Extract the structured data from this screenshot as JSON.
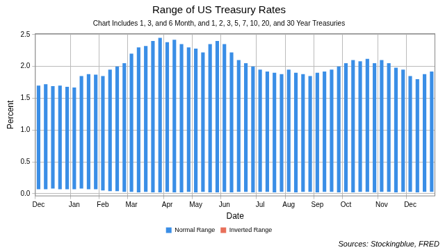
{
  "chart_data": {
    "type": "bar",
    "title": "Range of US Treasury Rates",
    "subtitle": "Chart Includes 1, 3, and 6 Month, and 1, 2, 3, 5, 7, 10, 20, and 30 Year Treasuries",
    "x_label": "Date",
    "y_label": "Percent",
    "annotation": "Sources: Stockingblue, FRED",
    "categories": [
      "Dec",
      null,
      null,
      null,
      null,
      "Jan",
      null,
      null,
      null,
      "Feb",
      null,
      null,
      null,
      "Mar",
      null,
      null,
      null,
      null,
      "Apr",
      null,
      null,
      null,
      "May",
      null,
      null,
      null,
      "Jun",
      null,
      null,
      null,
      null,
      "Jul",
      null,
      null,
      null,
      "Aug",
      null,
      null,
      null,
      "Sep",
      null,
      null,
      null,
      "Oct",
      null,
      null,
      null,
      null,
      "Nov",
      null,
      null,
      null,
      "Dec",
      null,
      null,
      null
    ],
    "series": [
      {
        "name": "Normal Range",
        "color": "#3a8ee6",
        "low": [
          0.07,
          0.07,
          0.08,
          0.07,
          0.07,
          0.07,
          0.08,
          0.07,
          0.07,
          0.05,
          0.04,
          0.04,
          0.03,
          0.03,
          0.02,
          0.03,
          0.02,
          0.02,
          0.03,
          0.02,
          0.02,
          0.03,
          0.02,
          0.03,
          0.02,
          0.02,
          0.03,
          0.02,
          0.03,
          0.03,
          0.02,
          0.03,
          0.03,
          0.02,
          0.03,
          0.03,
          0.02,
          0.03,
          0.03,
          0.02,
          0.03,
          0.03,
          0.02,
          0.03,
          0.02,
          0.03,
          0.03,
          0.02,
          0.03,
          0.03,
          0.02,
          0.03,
          0.03,
          0.02,
          0.03,
          0.03
        ],
        "high": [
          1.7,
          1.72,
          1.69,
          1.7,
          1.68,
          1.67,
          1.85,
          1.88,
          1.87,
          1.85,
          1.95,
          2.0,
          2.05,
          2.2,
          2.3,
          2.32,
          2.4,
          2.45,
          2.38,
          2.42,
          2.35,
          2.3,
          2.28,
          2.22,
          2.35,
          2.4,
          2.35,
          2.22,
          2.1,
          2.05,
          2.0,
          1.95,
          1.92,
          1.9,
          1.88,
          1.95,
          1.9,
          1.88,
          1.85,
          1.9,
          1.92,
          1.95,
          2.0,
          2.05,
          2.1,
          2.08,
          2.12,
          2.05,
          2.1,
          2.05,
          1.98,
          1.95,
          1.85,
          1.8,
          1.88,
          1.92
        ]
      },
      {
        "name": "Inverted Range",
        "color": "#e8705a",
        "low": [
          null,
          null,
          null,
          null,
          null,
          null,
          null,
          null,
          null,
          null,
          null,
          null,
          null,
          null,
          null,
          null,
          null,
          null,
          null,
          null,
          null,
          null,
          null,
          null,
          null,
          null,
          null,
          null,
          null,
          null,
          null,
          null,
          null,
          null,
          null,
          null,
          null,
          null,
          null,
          null,
          null,
          null,
          null,
          null,
          null,
          null,
          null,
          null,
          null,
          null,
          null,
          null,
          null,
          null,
          null,
          null
        ],
        "high": [
          null,
          null,
          null,
          null,
          null,
          null,
          null,
          null,
          null,
          null,
          null,
          null,
          null,
          null,
          null,
          null,
          null,
          null,
          null,
          null,
          null,
          null,
          null,
          null,
          null,
          null,
          null,
          null,
          null,
          null,
          null,
          null,
          null,
          null,
          null,
          null,
          null,
          null,
          null,
          null,
          null,
          null,
          null,
          null,
          null,
          null,
          null,
          null,
          null,
          null,
          null,
          null,
          null,
          null,
          null,
          null
        ]
      }
    ],
    "ylim": [
      -0.04,
      2.52
    ],
    "yticks": [
      {
        "value": 0,
        "label": "0.0"
      },
      0.5,
      {
        "value": 1,
        "label": "1.0"
      },
      1.5,
      {
        "value": 2,
        "label": "2.0"
      },
      2.5
    ],
    "grid": true,
    "legend": "bottom"
  }
}
